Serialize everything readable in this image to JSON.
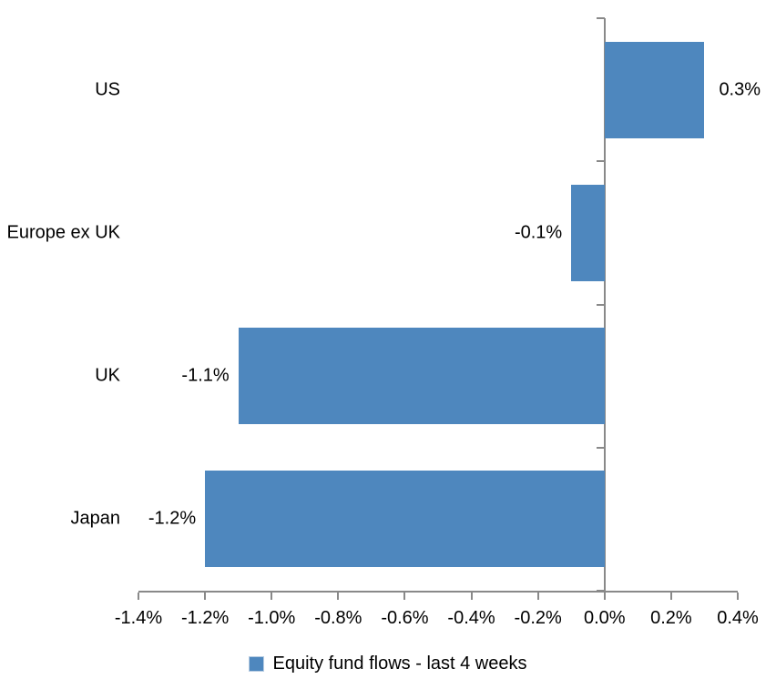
{
  "chart_data": {
    "type": "bar",
    "orientation": "horizontal",
    "title": "",
    "xlabel": "",
    "ylabel": "",
    "categories": [
      "US",
      "Europe ex UK",
      "UK",
      "Japan"
    ],
    "values": [
      0.3,
      -0.1,
      -1.1,
      -1.2
    ],
    "value_labels": [
      "0.3%",
      "-0.1%",
      "-1.1%",
      "-1.2%"
    ],
    "series_name": "Equity fund flows - last 4 weeks",
    "xlim": [
      -1.4,
      0.4
    ],
    "x_tick_values": [
      -1.4,
      -1.2,
      -1.0,
      -0.8,
      -0.6,
      -0.4,
      -0.2,
      0.0,
      0.2,
      0.4
    ],
    "x_tick_labels": [
      "-1.4%",
      "-1.2%",
      "-1.0%",
      "-0.8%",
      "-0.6%",
      "-0.4%",
      "-0.2%",
      "0.0%",
      "0.2%",
      "0.4%"
    ],
    "grid": false,
    "legend_position": "bottom",
    "bar_color": "#4e87be",
    "axis_color": "#898989",
    "text_color": "#000000"
  }
}
